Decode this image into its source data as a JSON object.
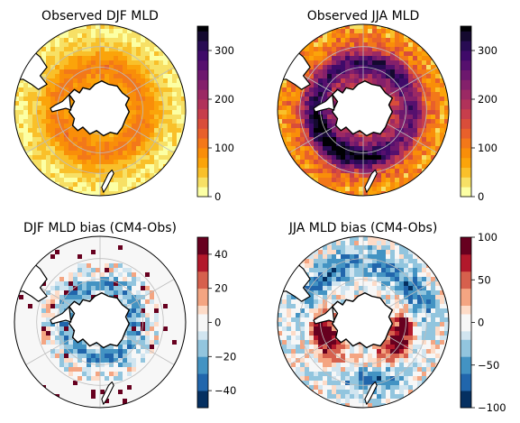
{
  "chart_data": [
    {
      "type": "heatmap",
      "title": "Observed DJF MLD",
      "projection": "south-polar-stereographic",
      "colormap": "inferno_r",
      "colorbar": {
        "range": [
          0,
          350
        ],
        "boundaries": [
          0,
          20,
          40,
          60,
          80,
          100,
          120,
          140,
          160,
          180,
          200,
          220,
          240,
          260,
          280,
          300,
          320,
          340,
          350
        ],
        "ticks": [
          0,
          100,
          200,
          300
        ],
        "tick_labels": [
          "0",
          "100",
          "200",
          "300"
        ]
      },
      "field_description": "Mostly 40-120 m; deepest (about 100-150 m) in a ring in the Antarctic Circumpolar Current belt",
      "gridlines": true
    },
    {
      "type": "heatmap",
      "title": "Observed JJA MLD",
      "projection": "south-polar-stereographic",
      "colormap": "inferno_r",
      "colorbar": {
        "range": [
          0,
          350
        ],
        "boundaries": [
          0,
          20,
          40,
          60,
          80,
          100,
          120,
          140,
          160,
          180,
          200,
          220,
          240,
          260,
          280,
          300,
          320,
          340,
          350
        ],
        "ticks": [
          0,
          100,
          200,
          300
        ],
        "tick_labels": [
          "0",
          "100",
          "200",
          "300"
        ]
      },
      "field_description": "Deep winter mixed layers (200-350 m) along the Subantarctic ring, deepest in the southeast Pacific and southeast Indian sectors",
      "gridlines": true
    },
    {
      "type": "heatmap",
      "title": "DJF MLD bias (CM4-Obs)",
      "projection": "south-polar-stereographic",
      "colormap": "RdBu_r",
      "colorbar": {
        "range": [
          -50,
          50
        ],
        "boundaries": [
          -50,
          -40,
          -30,
          -20,
          -10,
          -5,
          5,
          10,
          20,
          30,
          40,
          50
        ],
        "ticks": [
          -40,
          -20,
          0,
          20,
          40
        ],
        "tick_labels": [
          "−40",
          "−20",
          "0",
          "20",
          "40"
        ]
      },
      "field_description": "Weak biases; shallow (negative, blue) bias of about -10 to -30 m in a ring around Antarctica",
      "gridlines": true
    },
    {
      "type": "heatmap",
      "title": "JJA MLD bias (CM4-Obs)",
      "projection": "south-polar-stereographic",
      "colormap": "RdBu_r",
      "colorbar": {
        "range": [
          -100,
          100
        ],
        "boundaries": [
          -100,
          -80,
          -60,
          -40,
          -20,
          -10,
          10,
          20,
          40,
          60,
          80,
          100
        ],
        "ticks": [
          -100,
          -50,
          0,
          50,
          100
        ],
        "tick_labels": [
          "−100",
          "−50",
          "0",
          "50",
          "100"
        ]
      },
      "field_description": "Strong deep (positive, red) biases near +100 m in the southeast Pacific and Indian sectors; shallow (blue) biases elsewhere",
      "gridlines": true
    }
  ],
  "colors": {
    "land": "#ffffff",
    "coastline": "#000000",
    "gridline": "#bdbdbd",
    "bias_background": "#e3edf4"
  }
}
